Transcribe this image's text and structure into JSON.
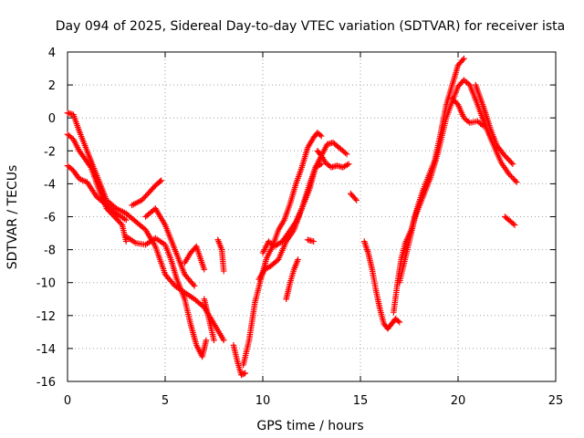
{
  "chart_data": {
    "type": "scatter",
    "title": "Day 094 of 2025, Sidereal Day-to-day VTEC variation (SDTVAR) for receiver ista",
    "xlabel": "GPS time / hours",
    "ylabel": "SDTVAR / TECUs",
    "xlim": [
      0,
      25
    ],
    "ylim": [
      -16,
      4
    ],
    "xticks": [
      0,
      5,
      10,
      15,
      20,
      25
    ],
    "yticks": [
      -16,
      -14,
      -12,
      -10,
      -8,
      -6,
      -4,
      -2,
      0,
      2,
      4
    ],
    "grid": true,
    "marker": "+",
    "marker_color": "#ff0000",
    "series": [
      {
        "name": "track-1",
        "x": [
          0.0,
          0.3,
          0.6,
          1.0,
          1.5,
          2.0,
          2.5,
          3.0,
          3.5,
          4.0,
          4.5,
          5.0,
          5.5,
          6.0,
          6.5,
          7.0,
          7.5,
          8.0
        ],
        "y": [
          0.3,
          0.2,
          -0.8,
          -2.0,
          -3.5,
          -5.0,
          -5.5,
          -5.8,
          -6.3,
          -6.8,
          -7.8,
          -9.5,
          -10.2,
          -10.6,
          -11.0,
          -11.5,
          -12.5,
          -13.5
        ]
      },
      {
        "name": "track-2",
        "x": [
          0.0,
          0.3,
          0.6,
          0.9,
          1.2,
          1.6,
          2.0,
          2.4,
          2.8,
          3.0
        ],
        "y": [
          -1.0,
          -1.3,
          -2.0,
          -2.5,
          -3.0,
          -4.3,
          -5.5,
          -6.0,
          -6.5,
          -7.5
        ]
      },
      {
        "name": "track-3",
        "x": [
          0.0,
          0.3,
          0.6,
          1.0,
          1.5,
          2.0,
          2.5,
          3.0
        ],
        "y": [
          -2.9,
          -3.2,
          -3.7,
          -3.9,
          -4.8,
          -5.3,
          -5.8,
          -6.2
        ]
      },
      {
        "name": "track-4",
        "x": [
          3.3,
          3.8,
          4.2,
          4.5,
          4.7,
          4.8
        ],
        "y": [
          -5.3,
          -5.0,
          -4.5,
          -4.1,
          -3.9,
          -3.8
        ]
      },
      {
        "name": "track-5",
        "x": [
          3.0,
          3.5,
          4.0,
          4.5,
          5.0,
          5.3,
          5.6,
          6.0,
          6.3,
          6.6,
          6.9,
          7.1
        ],
        "y": [
          -7.2,
          -7.6,
          -7.7,
          -7.3,
          -7.7,
          -8.6,
          -9.8,
          -11.0,
          -12.5,
          -13.8,
          -14.5,
          -13.5
        ]
      },
      {
        "name": "track-6",
        "x": [
          4.0,
          4.5,
          5.0,
          5.5,
          6.0,
          6.5
        ],
        "y": [
          -6.0,
          -5.5,
          -6.5,
          -8.0,
          -9.5,
          -10.2
        ]
      },
      {
        "name": "track-7",
        "x": [
          6.0,
          6.3,
          6.6,
          7.0
        ],
        "y": [
          -8.8,
          -8.2,
          -7.8,
          -9.2
        ]
      },
      {
        "name": "track-8",
        "x": [
          7.0,
          7.2,
          7.5
        ],
        "y": [
          -11.0,
          -12.0,
          -13.5
        ]
      },
      {
        "name": "track-9",
        "x": [
          7.7,
          7.9,
          8.0
        ],
        "y": [
          -7.4,
          -8.0,
          -9.3
        ]
      },
      {
        "name": "track-10",
        "x": [
          8.5,
          8.7,
          8.9,
          9.1
        ],
        "y": [
          -13.8,
          -14.8,
          -15.6,
          -15.5
        ]
      },
      {
        "name": "track-11",
        "x": [
          9.0,
          9.3,
          9.6,
          9.9,
          10.2,
          10.5,
          10.8,
          11.1,
          11.4,
          11.7,
          12.0,
          12.3,
          12.6,
          12.8,
          13.0
        ],
        "y": [
          -15.0,
          -13.5,
          -11.2,
          -9.8,
          -8.5,
          -7.8,
          -6.8,
          -6.2,
          -5.2,
          -4.0,
          -3.0,
          -1.8,
          -1.2,
          -0.9,
          -1.1
        ]
      },
      {
        "name": "track-12",
        "x": [
          9.8,
          10.1,
          10.4,
          10.8,
          11.2,
          11.6,
          12.0,
          12.4,
          12.7,
          13.0
        ],
        "y": [
          -9.8,
          -9.2,
          -9.0,
          -8.6,
          -7.5,
          -6.8,
          -5.5,
          -4.3,
          -3.0,
          -2.8
        ]
      },
      {
        "name": "track-13",
        "x": [
          10.0,
          10.3,
          10.6,
          11.0,
          11.3,
          11.7,
          12.0,
          12.4,
          12.7,
          13.0,
          13.3,
          13.6,
          14.0,
          14.3
        ],
        "y": [
          -8.2,
          -7.5,
          -7.8,
          -7.5,
          -7.0,
          -6.3,
          -5.5,
          -4.0,
          -3.0,
          -2.3,
          -1.6,
          -1.5,
          -1.9,
          -2.2
        ]
      },
      {
        "name": "track-14",
        "x": [
          11.2,
          11.4,
          11.6,
          11.8
        ],
        "y": [
          -11.0,
          -10.0,
          -9.2,
          -8.6
        ]
      },
      {
        "name": "track-15",
        "x": [
          12.8,
          13.0,
          13.2,
          13.5,
          13.8,
          14.1,
          14.4
        ],
        "y": [
          -2.0,
          -2.3,
          -2.7,
          -3.0,
          -2.9,
          -3.0,
          -2.8
        ]
      },
      {
        "name": "track-16",
        "x": [
          12.3,
          12.6
        ],
        "y": [
          -7.4,
          -7.5
        ]
      },
      {
        "name": "track-17",
        "x": [
          14.5,
          14.8
        ],
        "y": [
          -4.6,
          -5.0
        ]
      },
      {
        "name": "track-18",
        "x": [
          15.2,
          15.4,
          15.6,
          15.8,
          16.0,
          16.2,
          16.4,
          16.6,
          16.8,
          17.0
        ],
        "y": [
          -7.5,
          -8.2,
          -9.2,
          -10.5,
          -11.6,
          -12.5,
          -12.8,
          -12.5,
          -12.2,
          -12.4
        ]
      },
      {
        "name": "track-19",
        "x": [
          16.7,
          16.9,
          17.1,
          17.3,
          17.6,
          17.9,
          18.2,
          18.5,
          18.8,
          19.1,
          19.4,
          19.7,
          20.0,
          20.3
        ],
        "y": [
          -11.8,
          -10.0,
          -8.5,
          -7.6,
          -6.8,
          -5.5,
          -4.4,
          -3.5,
          -2.6,
          -1.0,
          0.8,
          2.0,
          3.2,
          3.6
        ]
      },
      {
        "name": "track-20",
        "x": [
          17.0,
          17.4,
          17.8,
          18.2,
          18.6,
          19.0,
          19.4,
          19.7,
          20.0,
          20.3,
          20.6,
          21.0,
          21.4,
          21.8,
          22.2,
          22.6,
          23.0
        ],
        "y": [
          -10.0,
          -8.0,
          -6.0,
          -4.8,
          -3.6,
          -2.0,
          0.0,
          1.0,
          1.9,
          2.3,
          2.0,
          0.8,
          -0.5,
          -1.6,
          -2.7,
          -3.4,
          -3.9
        ]
      },
      {
        "name": "track-21",
        "x": [
          19.7,
          20.0,
          20.3,
          20.6,
          21.0,
          21.3
        ],
        "y": [
          1.2,
          0.8,
          0.0,
          -0.3,
          -0.2,
          -0.5
        ]
      },
      {
        "name": "track-22",
        "x": [
          20.9,
          21.2,
          21.4,
          21.7,
          22.0,
          22.4,
          22.8
        ],
        "y": [
          2.0,
          1.0,
          0.3,
          -0.8,
          -1.7,
          -2.3,
          -2.8
        ]
      },
      {
        "name": "track-23",
        "x": [
          22.4,
          22.6,
          22.9
        ],
        "y": [
          -6.0,
          -6.2,
          -6.5
        ]
      }
    ]
  }
}
